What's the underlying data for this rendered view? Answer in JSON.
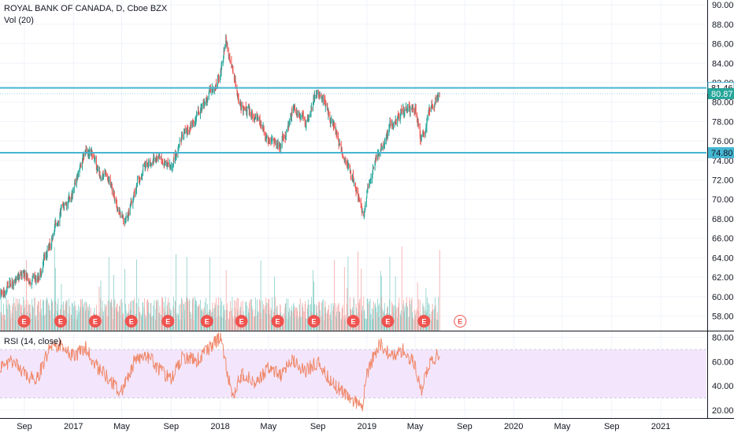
{
  "legend": {
    "title": "ROYAL BANK OF CANADA, D, Cboe BZX",
    "volume": "Vol (20)",
    "rsi": "RSI (14, close)"
  },
  "colors": {
    "up": "#26a69a",
    "down": "#ef5350",
    "vol_up": "#88cfc8",
    "vol_down": "#f4a8a6",
    "hline": "#45b6d2",
    "rsi_line": "#f0896b",
    "rsi_band": "#f3e6fc",
    "price_tag": "#26a69a"
  },
  "earnings_marker_label": "E",
  "chart_data": [
    {
      "type": "candlestick",
      "title": "ROYAL BANK OF CANADA, D, Cboe BZX",
      "y_ticks": [
        "90.00",
        "88.00",
        "86.00",
        "84.00",
        "82.00",
        "80.00",
        "78.00",
        "76.00",
        "74.00",
        "72.00",
        "70.00",
        "68.00",
        "66.00",
        "64.00",
        "62.00",
        "60.00",
        "58.00"
      ],
      "ylim": [
        56.5,
        90.5
      ],
      "x_ticks": [
        "Sep",
        "2017",
        "May",
        "Sep",
        "2018",
        "May",
        "Sep",
        "2019",
        "May",
        "Sep",
        "2020",
        "May",
        "Sep",
        "2021"
      ],
      "x_tick_dates": [
        "2016-09-01",
        "2017-01-01",
        "2017-05-01",
        "2017-09-01",
        "2018-01-01",
        "2018-05-01",
        "2018-09-01",
        "2019-01-01",
        "2019-05-01",
        "2019-09-01",
        "2020-01-01",
        "2020-05-01",
        "2020-09-01",
        "2021-01-01"
      ],
      "price_anchor_dates": [
        "2016-07-01",
        "2016-08-01",
        "2016-09-01",
        "2016-10-01",
        "2016-11-01",
        "2016-12-01",
        "2017-01-01",
        "2017-02-01",
        "2017-02-15",
        "2017-03-01",
        "2017-04-01",
        "2017-05-01",
        "2017-05-15",
        "2017-06-01",
        "2017-07-01",
        "2017-08-01",
        "2017-09-01",
        "2017-10-01",
        "2017-11-01",
        "2017-12-01",
        "2018-01-01",
        "2018-01-15",
        "2018-02-01",
        "2018-02-15",
        "2018-03-01",
        "2018-04-01",
        "2018-05-01",
        "2018-06-01",
        "2018-07-01",
        "2018-08-01",
        "2018-09-01",
        "2018-10-01",
        "2018-11-01",
        "2018-12-01",
        "2018-12-24",
        "2019-01-01",
        "2019-02-01",
        "2019-03-01",
        "2019-04-01",
        "2019-05-01",
        "2019-05-15",
        "2019-06-01",
        "2019-07-01"
      ],
      "price_anchor_values": [
        59.9,
        61.5,
        62.5,
        61.5,
        65.0,
        69.0,
        71.0,
        75.5,
        74.5,
        73.0,
        71.5,
        68.0,
        67.5,
        71.0,
        73.5,
        74.5,
        73.5,
        77.0,
        78.0,
        80.5,
        83.0,
        86.5,
        83.0,
        80.0,
        79.5,
        78.5,
        76.0,
        75.5,
        79.0,
        78.0,
        81.0,
        78.5,
        74.5,
        72.0,
        68.0,
        70.5,
        75.0,
        77.5,
        79.0,
        79.5,
        75.5,
        78.5,
        80.9
      ],
      "horizontal_lines": [
        81.46,
        74.8
      ],
      "last_price": 80.87,
      "price_tags": [
        "81.46",
        "80.87",
        "74.80"
      ]
    },
    {
      "type": "bar",
      "title": "Vol (20)"
    },
    {
      "type": "line",
      "title": "RSI (14, close)",
      "y_ticks": [
        "80.00",
        "60.00",
        "40.00",
        "20.00"
      ],
      "ylim": [
        14,
        85
      ],
      "band": [
        30,
        70
      ],
      "rsi_anchor_dates": [
        "2016-07-01",
        "2016-08-01",
        "2016-09-01",
        "2016-10-01",
        "2016-11-01",
        "2016-12-01",
        "2017-01-01",
        "2017-02-01",
        "2017-03-01",
        "2017-04-01",
        "2017-05-01",
        "2017-06-01",
        "2017-07-01",
        "2017-08-01",
        "2017-09-01",
        "2017-10-01",
        "2017-11-01",
        "2017-12-01",
        "2018-01-01",
        "2018-02-01",
        "2018-02-15",
        "2018-03-01",
        "2018-04-01",
        "2018-05-01",
        "2018-06-01",
        "2018-07-01",
        "2018-08-01",
        "2018-09-01",
        "2018-10-01",
        "2018-11-01",
        "2018-12-01",
        "2018-12-20",
        "2019-01-01",
        "2019-02-01",
        "2019-03-01",
        "2019-04-01",
        "2019-05-01",
        "2019-05-15",
        "2019-06-01",
        "2019-07-01"
      ],
      "rsi_anchor_values": [
        55,
        60,
        50,
        45,
        70,
        75,
        65,
        72,
        55,
        45,
        35,
        60,
        65,
        55,
        45,
        65,
        60,
        70,
        80,
        30,
        45,
        50,
        42,
        55,
        48,
        62,
        52,
        60,
        45,
        35,
        28,
        20,
        50,
        75,
        65,
        70,
        58,
        35,
        55,
        68
      ]
    }
  ],
  "earnings_dates": [
    "2016-08-31",
    "2016-11-30",
    "2017-02-24",
    "2017-05-25",
    "2017-08-24",
    "2017-11-29",
    "2018-02-23",
    "2018-05-24",
    "2018-08-22",
    "2018-11-28",
    "2019-02-22",
    "2019-05-23",
    "2019-08-21"
  ]
}
